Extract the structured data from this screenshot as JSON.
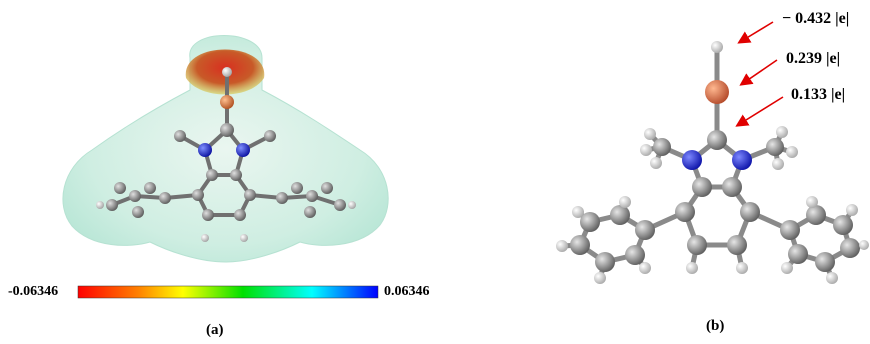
{
  "panel_a": {
    "caption": "(a)",
    "colorbar": {
      "min_label": "-0.06346",
      "max_label": "0.06346",
      "colors": [
        "#ff0000",
        "#ff8000",
        "#ffff00",
        "#00ff00",
        "#00ffff",
        "#0000ff"
      ]
    }
  },
  "panel_b": {
    "caption": "(b)",
    "charges": [
      "− 0.432 |e|",
      "0.239 |e|",
      "0.133 |e|"
    ],
    "arrow_color": "#e00000"
  },
  "atom_colors": {
    "carbon": "#808080",
    "nitrogen": "#1a22d0",
    "boron": "#e08050",
    "hydrogen": "#e8e8e8"
  }
}
